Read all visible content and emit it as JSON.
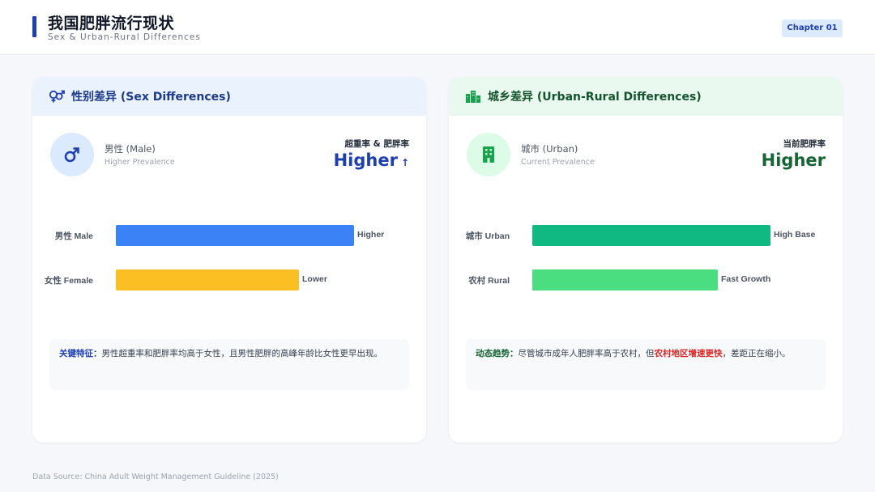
{
  "header": {
    "title": "我国肥胖流行现状",
    "subtitle": "Sex & Urban-Rural Differences",
    "chapter": "Chapter 01"
  },
  "sex": {
    "head_title": "性别差异 (Sex Differences)",
    "metric_name": "男性 (Male)",
    "metric_sub": "Higher Prevalence",
    "metric_label": "超重率 & 肥胖率",
    "metric_value": "Higher",
    "metric_arrow": "↑",
    "note_key": "关键特征：",
    "note_text": "男性超重率和肥胖率均高于女性，且男性肥胖的高峰年龄比女性更早出现。"
  },
  "urban": {
    "head_title": "城乡差异 (Urban-Rural Differences)",
    "metric_name": "城市 (Urban)",
    "metric_sub": "Current Prevalence",
    "metric_label": "当前肥胖率",
    "metric_value": "Higher",
    "note_key": "动态趋势：",
    "note_text_1": "尽管城市成年人肥胖率高于农村，但",
    "note_highlight": "农村地区增速更快",
    "note_text_2": "，差距正在缩小。"
  },
  "chart_data": [
    {
      "type": "bar",
      "orientation": "horizontal",
      "categories": [
        "男性 Male",
        "女性 Female"
      ],
      "values": [
        1.0,
        0.77
      ],
      "value_labels": [
        "Higher",
        "Lower"
      ],
      "colors": [
        "#3b82f6",
        "#fbbf24"
      ]
    },
    {
      "type": "bar",
      "orientation": "horizontal",
      "categories": [
        "城市 Urban",
        "农村 Rural"
      ],
      "values": [
        1.0,
        0.78
      ],
      "value_labels": [
        "High Base",
        "Fast Growth"
      ],
      "colors": [
        "#10b981",
        "#4ade80"
      ]
    }
  ],
  "footer": {
    "source": "Data Source: China Adult Weight Management Guideline (2025)"
  }
}
